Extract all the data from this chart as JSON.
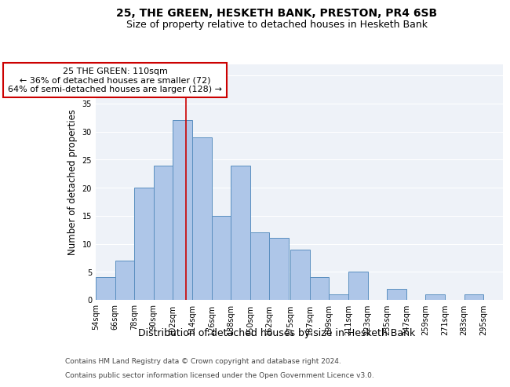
{
  "title1": "25, THE GREEN, HESKETH BANK, PRESTON, PR4 6SB",
  "title2": "Size of property relative to detached houses in Hesketh Bank",
  "xlabel": "Distribution of detached houses by size in Hesketh Bank",
  "ylabel": "Number of detached properties",
  "footnote1": "Contains HM Land Registry data © Crown copyright and database right 2024.",
  "footnote2": "Contains public sector information licensed under the Open Government Licence v3.0.",
  "bin_labels": [
    "54sqm",
    "66sqm",
    "78sqm",
    "90sqm",
    "102sqm",
    "114sqm",
    "126sqm",
    "138sqm",
    "150sqm",
    "162sqm",
    "175sqm",
    "187sqm",
    "199sqm",
    "211sqm",
    "223sqm",
    "235sqm",
    "247sqm",
    "259sqm",
    "271sqm",
    "283sqm",
    "295sqm"
  ],
  "bin_edges": [
    54,
    66,
    78,
    90,
    102,
    114,
    126,
    138,
    150,
    162,
    175,
    187,
    199,
    211,
    223,
    235,
    247,
    259,
    271,
    283,
    295
  ],
  "bar_heights": [
    4,
    7,
    20,
    24,
    32,
    29,
    15,
    24,
    12,
    11,
    9,
    4,
    1,
    5,
    0,
    2,
    0,
    1,
    0,
    1,
    0
  ],
  "bar_color": "#aec6e8",
  "bar_edge_color": "#5a8fc0",
  "vline_x": 110,
  "vline_color": "#cc0000",
  "annotation_text": "25 THE GREEN: 110sqm\n← 36% of detached houses are smaller (72)\n64% of semi-detached houses are larger (128) →",
  "annotation_box_color": "#ffffff",
  "annotation_box_edge": "#cc0000",
  "ylim": [
    0,
    42
  ],
  "yticks": [
    0,
    5,
    10,
    15,
    20,
    25,
    30,
    35,
    40
  ],
  "background_color": "#eef2f8",
  "grid_color": "#ffffff",
  "title1_fontsize": 10,
  "title2_fontsize": 9,
  "xlabel_fontsize": 9,
  "ylabel_fontsize": 8.5,
  "tick_fontsize": 7,
  "annot_fontsize": 8,
  "footnote_fontsize": 6.5
}
